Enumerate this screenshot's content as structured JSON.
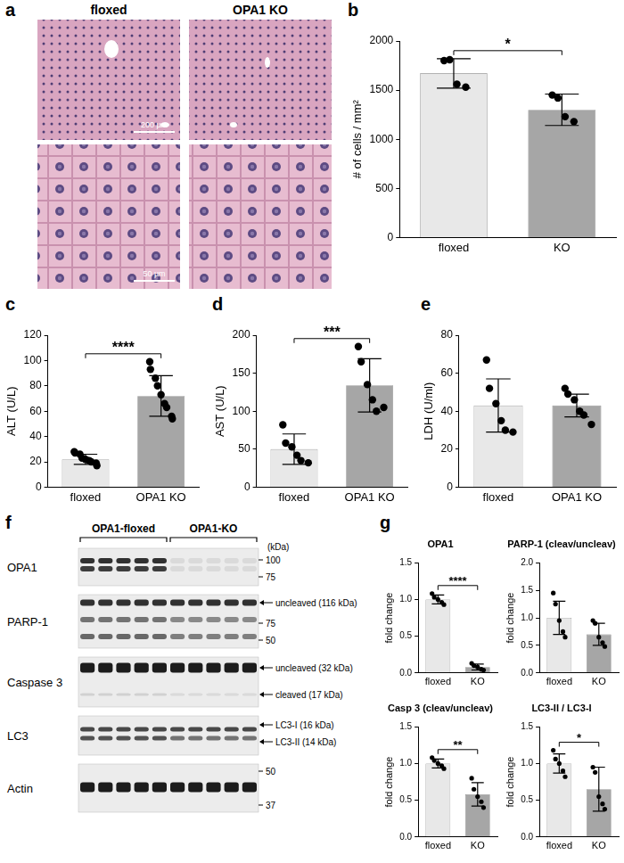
{
  "panel_a": {
    "label": "a",
    "columns": [
      "floxed",
      "OPA1 KO"
    ],
    "scale_bars": [
      "200 µm",
      "50 µm"
    ]
  },
  "panel_f": {
    "label": "f",
    "groups": [
      "OPA1-floxed",
      "OPA1-KO"
    ],
    "marker_unit": "(kDa)",
    "blots": [
      {
        "name": "OPA1",
        "markers": [
          100,
          75
        ],
        "annotations": []
      },
      {
        "name": "PARP-1",
        "markers": [
          75,
          50
        ],
        "annotations": [
          "uncleaved (116 kDa)"
        ]
      },
      {
        "name": "Caspase 3",
        "markers": [],
        "annotations": [
          "uncleaved (32 kDa)",
          "cleaved (17 kDa)"
        ]
      },
      {
        "name": "LC3",
        "markers": [],
        "annotations": [
          "LC3-I (16 kDa)",
          "LC3-II (14 kDa)"
        ]
      },
      {
        "name": "Actin",
        "markers": [
          50,
          37
        ],
        "annotations": []
      }
    ]
  },
  "chart_data": [
    {
      "panel": "b",
      "type": "bar",
      "y_label": "# of cells / mm²",
      "categories": [
        "floxed",
        "KO"
      ],
      "colors": [
        "#e8e8e8",
        "#a6a6a6"
      ],
      "values": [
        1670,
        1300
      ],
      "errors": [
        150,
        160
      ],
      "points": [
        [
          1800,
          1810,
          1560,
          1530
        ],
        [
          1450,
          1420,
          1230,
          1180
        ]
      ],
      "significance": "*",
      "ylim": [
        0,
        2000
      ],
      "yticks": [
        0,
        500,
        1000,
        1500,
        2000
      ],
      "grid": false
    },
    {
      "panel": "c",
      "type": "bar",
      "y_label": "ALT (U/L)",
      "categories": [
        "floxed",
        "OPA1 KO"
      ],
      "colors": [
        "#e8e8e8",
        "#a6a6a6"
      ],
      "values": [
        22,
        72
      ],
      "errors": [
        4,
        16
      ],
      "points": [
        [
          28,
          27,
          26,
          23,
          22,
          21,
          20,
          19,
          17
        ],
        [
          99,
          93,
          86,
          80,
          73,
          66,
          63,
          56,
          54
        ]
      ],
      "significance": "****",
      "ylim": [
        0,
        120
      ],
      "yticks": [
        0,
        20,
        40,
        60,
        80,
        100,
        120
      ],
      "grid": false
    },
    {
      "panel": "d",
      "type": "bar",
      "y_label": "AST (U/L)",
      "categories": [
        "floxed",
        "OPA1 KO"
      ],
      "colors": [
        "#e8e8e8",
        "#a6a6a6"
      ],
      "values": [
        50,
        134
      ],
      "errors": [
        20,
        35
      ],
      "points": [
        [
          82,
          58,
          53,
          42,
          35,
          32
        ],
        [
          185,
          165,
          135,
          115,
          100,
          105
        ]
      ],
      "significance": "***",
      "ylim": [
        0,
        200
      ],
      "yticks": [
        0,
        50,
        100,
        150,
        200
      ],
      "grid": false
    },
    {
      "panel": "e",
      "type": "bar",
      "y_label": "LDH (U/ml)",
      "categories": [
        "floxed",
        "OPA1 KO"
      ],
      "colors": [
        "#e8e8e8",
        "#a6a6a6"
      ],
      "values": [
        43,
        43
      ],
      "errors": [
        14,
        6
      ],
      "points": [
        [
          67,
          52,
          44,
          35,
          30,
          29
        ],
        [
          52,
          49,
          46,
          40,
          38,
          33
        ]
      ],
      "ylim": [
        0,
        80
      ],
      "yticks": [
        0,
        20,
        40,
        60,
        80
      ],
      "grid": false
    },
    {
      "panel": "g",
      "type": "bar",
      "title": "OPA1",
      "y_label": "fold change",
      "categories": [
        "floxed",
        "KO"
      ],
      "colors": [
        "#e8e8e8",
        "#a6a6a6"
      ],
      "values": [
        1.0,
        0.08
      ],
      "errors": [
        0.06,
        0.04
      ],
      "points": [
        [
          1.08,
          1.03,
          1.0,
          0.96,
          0.93
        ],
        [
          0.13,
          0.1,
          0.08,
          0.05,
          0.04
        ]
      ],
      "significance": "****",
      "ylim": [
        0,
        1.5
      ],
      "yticks": [
        {
          "value": 0,
          "label": "0.0"
        },
        0.5,
        {
          "value": 1,
          "label": "1.0"
        },
        1.5
      ],
      "grid": false
    },
    {
      "type": "bar",
      "title": "PARP-1 (cleav/uncleav)",
      "y_label": "fold change",
      "categories": [
        "floxed",
        "KO"
      ],
      "colors": [
        "#e8e8e8",
        "#a6a6a6"
      ],
      "values": [
        1.0,
        0.7
      ],
      "errors": [
        0.3,
        0.2
      ],
      "points": [
        [
          1.45,
          1.25,
          0.95,
          0.75,
          0.65
        ],
        [
          0.95,
          0.9,
          0.65,
          0.55,
          0.48
        ]
      ],
      "ylim": [
        0,
        2
      ],
      "yticks": [
        {
          "value": 0,
          "label": "0.0"
        },
        0.5,
        {
          "value": 1,
          "label": "1.0"
        },
        1.5,
        {
          "value": 2,
          "label": "2.0"
        }
      ],
      "grid": false
    },
    {
      "type": "bar",
      "title": "Casp 3 (cleav/uncleav)",
      "y_label": "fold change",
      "categories": [
        "floxed",
        "KO"
      ],
      "colors": [
        "#e8e8e8",
        "#a6a6a6"
      ],
      "values": [
        1.0,
        0.58
      ],
      "errors": [
        0.06,
        0.16
      ],
      "points": [
        [
          1.08,
          1.04,
          1.0,
          0.97,
          0.93
        ],
        [
          0.8,
          0.65,
          0.55,
          0.48,
          0.4
        ]
      ],
      "significance": "**",
      "ylim": [
        0,
        1.5
      ],
      "yticks": [
        {
          "value": 0,
          "label": "0.0"
        },
        0.5,
        {
          "value": 1,
          "label": "1.0"
        },
        1.5
      ],
      "grid": false
    },
    {
      "type": "bar",
      "title": "LC3-II / LC3-I",
      "y_label": "fold change",
      "categories": [
        "floxed",
        "KO"
      ],
      "colors": [
        "#e8e8e8",
        "#a6a6a6"
      ],
      "values": [
        1.0,
        0.65
      ],
      "errors": [
        0.13,
        0.3
      ],
      "points": [
        [
          1.18,
          1.06,
          1.0,
          0.9,
          0.82
        ],
        [
          0.95,
          0.88,
          0.55,
          0.45,
          0.38
        ]
      ],
      "significance": "*",
      "ylim": [
        0,
        1.5
      ],
      "yticks": [
        {
          "value": 0,
          "label": "0.0"
        },
        0.5,
        {
          "value": 1,
          "label": "1.0"
        },
        1.5
      ],
      "grid": false
    }
  ]
}
